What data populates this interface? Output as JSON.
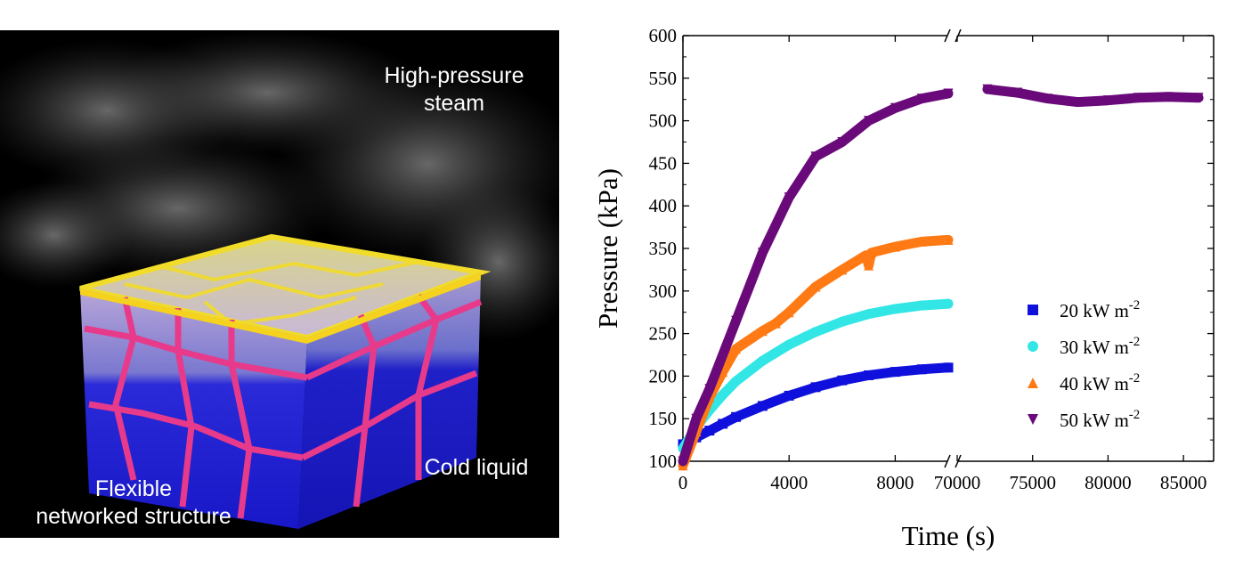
{
  "illustration": {
    "labels": {
      "steam": "High-pressure\nsteam",
      "liquid": "Cold liquid",
      "structure": "Flexible\nnetworked structure"
    }
  },
  "chart_data": {
    "type": "scatter",
    "title": "",
    "xlabel": "Time (s)",
    "ylabel": "Pressure (kPa)",
    "ylim": [
      100,
      600
    ],
    "yticks": [
      100,
      150,
      200,
      250,
      300,
      350,
      400,
      450,
      500,
      550,
      600
    ],
    "x_axis_break": true,
    "x_segments": [
      {
        "range": [
          0,
          10000
        ],
        "ticks": [
          "0",
          "4000",
          "8000"
        ],
        "tick_values": [
          0,
          4000,
          8000
        ]
      },
      {
        "range": [
          70000,
          87000
        ],
        "ticks": [
          "70000",
          "75000",
          "80000",
          "85000"
        ],
        "tick_values": [
          70000,
          75000,
          80000,
          85000
        ]
      }
    ],
    "legend": {
      "placement": "bottom-right"
    },
    "series": [
      {
        "name": "20 kW m-2",
        "color": "#1010dd",
        "marker": "square",
        "points": [
          [
            0,
            120
          ],
          [
            500,
            128
          ],
          [
            1000,
            136
          ],
          [
            1500,
            144
          ],
          [
            2000,
            152
          ],
          [
            3000,
            165
          ],
          [
            4000,
            177
          ],
          [
            5000,
            187
          ],
          [
            6000,
            195
          ],
          [
            7000,
            201
          ],
          [
            8000,
            205
          ],
          [
            9000,
            208
          ],
          [
            10000,
            210
          ]
        ]
      },
      {
        "name": "30 kW m-2",
        "color": "#33e6e6",
        "marker": "circle",
        "points": [
          [
            0,
            115
          ],
          [
            500,
            140
          ],
          [
            1000,
            160
          ],
          [
            1500,
            178
          ],
          [
            2000,
            194
          ],
          [
            3000,
            218
          ],
          [
            4000,
            237
          ],
          [
            5000,
            252
          ],
          [
            6000,
            264
          ],
          [
            7000,
            273
          ],
          [
            8000,
            279
          ],
          [
            9000,
            283
          ],
          [
            10000,
            285
          ]
        ]
      },
      {
        "name": "40 kW m-2",
        "color": "#ff7a14",
        "marker": "triangle-up",
        "points": [
          [
            0,
            95
          ],
          [
            500,
            135
          ],
          [
            1000,
            175
          ],
          [
            1500,
            205
          ],
          [
            2000,
            232
          ],
          [
            3000,
            253
          ],
          [
            3500,
            262
          ],
          [
            4000,
            275
          ],
          [
            5000,
            305
          ],
          [
            6000,
            325
          ],
          [
            6900,
            342
          ],
          [
            7000,
            330
          ],
          [
            7100,
            345
          ],
          [
            8000,
            352
          ],
          [
            9000,
            358
          ],
          [
            10000,
            360
          ]
        ]
      },
      {
        "name": "50 kW m-2",
        "color": "#6a0a7a",
        "marker": "triangle-down",
        "points": [
          [
            0,
            100
          ],
          [
            500,
            150
          ],
          [
            1000,
            185
          ],
          [
            2000,
            265
          ],
          [
            3000,
            345
          ],
          [
            4000,
            410
          ],
          [
            5000,
            458
          ],
          [
            6000,
            475
          ],
          [
            7000,
            500
          ],
          [
            8000,
            515
          ],
          [
            9000,
            526
          ],
          [
            10000,
            532
          ],
          [
            72000,
            537
          ],
          [
            74000,
            533
          ],
          [
            76000,
            526
          ],
          [
            78000,
            522
          ],
          [
            80000,
            524
          ],
          [
            82000,
            527
          ],
          [
            84000,
            528
          ],
          [
            86000,
            527
          ]
        ]
      }
    ]
  }
}
